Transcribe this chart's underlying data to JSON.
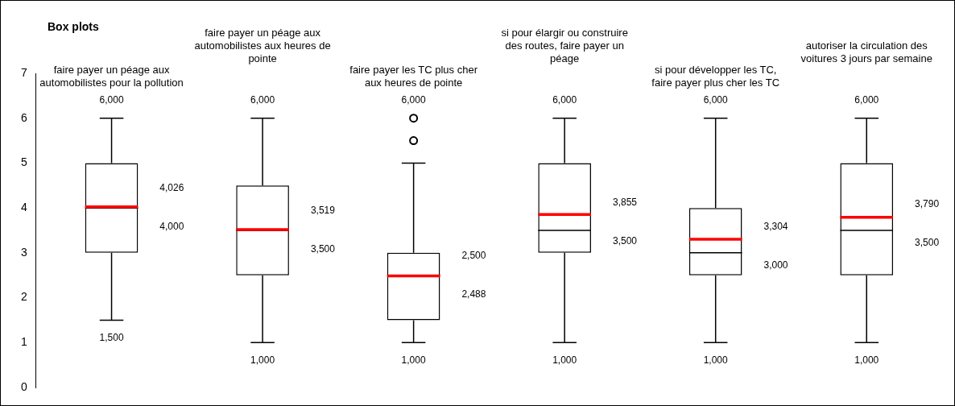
{
  "chart_data": {
    "type": "box",
    "title": "Box plots",
    "categories": [
      "faire payer un péage aux automobilistes pour la pollution",
      "faire payer un péage aux automobilistes aux heures de pointe",
      "faire payer les TC plus cher aux heures de pointe",
      "si pour élargir ou construire des routes, faire payer un péage",
      "si pour développer les TC, faire payer plus cher les TC",
      "autoriser la circulation des voitures 3 jours par semaine"
    ],
    "boxes": [
      {
        "low": 1.5,
        "q1": 3,
        "median": 4,
        "q3": 5,
        "high": 6,
        "mean": 4.026
      },
      {
        "low": 1,
        "q1": 2.5,
        "median": 3.5,
        "q3": 4.5,
        "high": 6,
        "mean": 3.519
      },
      {
        "low": 1,
        "q1": 1.5,
        "median": 2.5,
        "q3": 3,
        "high": 5,
        "mean": 2.488,
        "outliers": [
          5.5,
          6
        ]
      },
      {
        "low": 1,
        "q1": 3,
        "median": 3.5,
        "q3": 5,
        "high": 6,
        "mean": 3.855
      },
      {
        "low": 1,
        "q1": 2.5,
        "median": 3,
        "q3": 4,
        "high": 6,
        "mean": 3.304
      },
      {
        "low": 1,
        "q1": 2.5,
        "median": 3.5,
        "q3": 5,
        "high": 6,
        "mean": 3.79
      }
    ],
    "ylim": [
      0,
      7
    ],
    "yticks": [
      0,
      1,
      2,
      3,
      4,
      5,
      6,
      7
    ],
    "annotations": [
      "6,000",
      "4,026",
      "4,000",
      "1,500",
      "6,000",
      "3,519",
      "3,500",
      "1,000",
      "6,000",
      "2,500",
      "2,488",
      "1,000",
      "6,000",
      "3,855",
      "3,500",
      "1,000",
      "6,000",
      "3,304",
      "3,000",
      "1,000",
      "6,000",
      "3,790",
      "3,500",
      "1,000"
    ]
  }
}
